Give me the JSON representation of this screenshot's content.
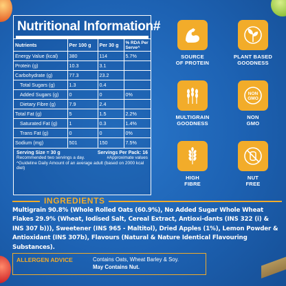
{
  "nutrition": {
    "title": "Nutritional Information",
    "title_mark": "#",
    "headers": [
      "Nutrients",
      "Per 100 g",
      "Per 30 g",
      "% RDA Per Serve^"
    ],
    "rows": [
      {
        "name": "Energy Value (kcal)",
        "per100": "380",
        "per30": "114",
        "rda": "5.7%"
      },
      {
        "name": "Protein (g)",
        "per100": "10.3",
        "per30": "3.1",
        "rda": ""
      },
      {
        "name": "Carbohydrate (g)",
        "per100": "77.3",
        "per30": "23.2",
        "rda": ""
      },
      {
        "name": "Total Sugars (g)",
        "per100": "1.3",
        "per30": "0.4",
        "rda": ""
      },
      {
        "name": "Added Sugars (g)",
        "per100": "0",
        "per30": "0",
        "rda": "0%"
      },
      {
        "name": "Dietary Fibre (g)",
        "per100": "7.9",
        "per30": "2.4",
        "rda": ""
      },
      {
        "name": "Total Fat (g)",
        "per100": "5",
        "per30": "1.5",
        "rda": "2.2%"
      },
      {
        "name": "Saturated Fat (g)",
        "per100": "1",
        "per30": "0.3",
        "rda": "1.4%"
      },
      {
        "name": "Trans Fat (g)",
        "per100": "0",
        "per30": "0",
        "rda": "0%"
      },
      {
        "name": "Sodium (mg)",
        "per100": "501",
        "per30": "150",
        "rda": "7.5%"
      }
    ],
    "serving_size": "Serving Size = 30 g",
    "servings_per_pack": "Servings Per Pack: 16",
    "recommend": "Recommended two servings a day.",
    "approx": "#Approximate values",
    "guideline": "^Guideline Daily Amount of an average adult (based on 2000 kcal diet)"
  },
  "badges": [
    {
      "icon": "muscle-arm-icon",
      "line1": "SOURCE",
      "line2": "OF PROTEIN"
    },
    {
      "icon": "leaf-sprout-icon",
      "line1": "PLANT BASED",
      "line2": "GOODNESS"
    },
    {
      "icon": "multigrain-icon",
      "line1": "MULTIGRAIN",
      "line2": "GOODNESS"
    },
    {
      "icon": "non-gmo-icon",
      "line1": "NON",
      "line2": "GMO",
      "badge_text1": "NON",
      "badge_text2": "GMO"
    },
    {
      "icon": "wheat-fibre-icon",
      "line1": "HIGH",
      "line2": "FIBRE"
    },
    {
      "icon": "nut-free-icon",
      "line1": "NUT",
      "line2": "FREE"
    }
  ],
  "ingredients": {
    "title": "INGREDIENTS",
    "text": "Multigrain 90.8% (Whole Rolled Oats (60.9%), No Added Sugar Whole Wheat Flakes 29.9% (Wheat, Iodised Salt, Cereal Extract, Antioxi-dants (INS 322 (i) & INS 307 b))), Sweetener (INS 965 - Maltitol), Dried Apples (1%), Lemon Powder & Antioxidant (INS 307b), Flavours (Natural & Nature Identical Flavouring Substances)."
  },
  "allergen": {
    "label": "ALLERGEN ADVICE",
    "contains": "Contains Oats, Wheat Barley & Soy.",
    "may_contain": "May Contains Nut."
  },
  "colors": {
    "background": "#1d62b3",
    "accent": "#f2ac2a",
    "text": "#ffffff"
  }
}
